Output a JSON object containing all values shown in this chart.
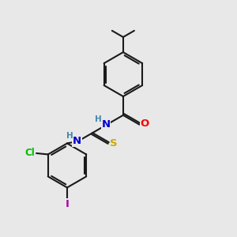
{
  "bg_color": "#e8e8e8",
  "bond_color": "#1a1a1a",
  "bond_width": 1.5,
  "atom_colors": {
    "O": "#ff0000",
    "N": "#0000cc",
    "S": "#ccaa00",
    "Cl": "#00bb00",
    "I": "#aa00aa",
    "H": "#4488aa",
    "C": "#1a1a1a"
  },
  "font_size": 8.5,
  "fig_size": [
    3.0,
    3.0
  ],
  "dpi": 100
}
